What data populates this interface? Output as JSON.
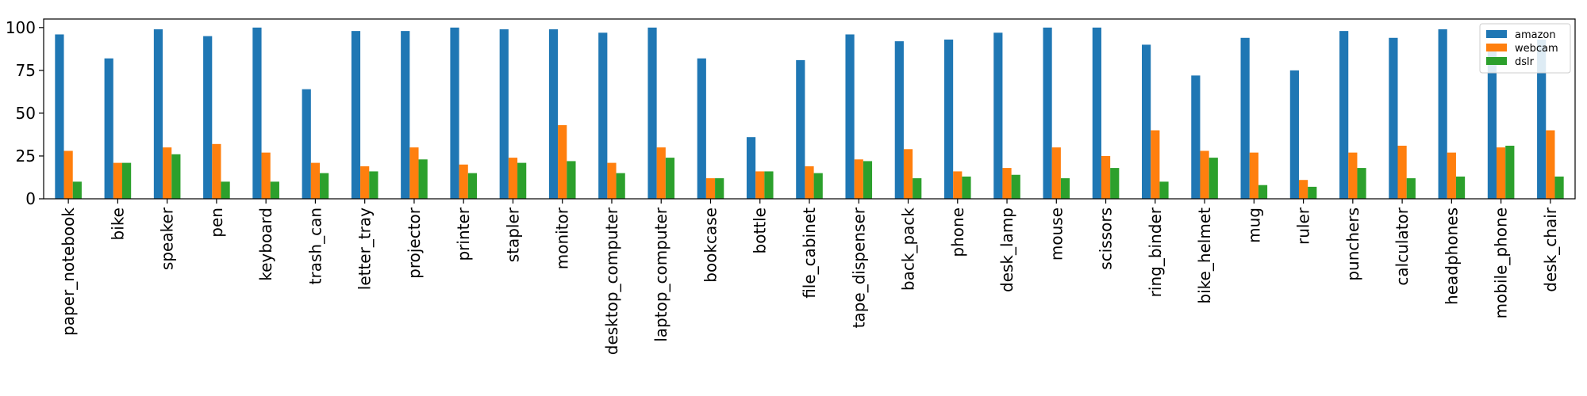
{
  "chart_data": {
    "type": "bar",
    "title": "",
    "xlabel": "",
    "ylabel": "",
    "ylim": [
      0,
      105
    ],
    "yticks": [
      0,
      25,
      50,
      75,
      100
    ],
    "grid": false,
    "legend_placement": "top-right",
    "categories": [
      "paper_notebook",
      "bike",
      "speaker",
      "pen",
      "keyboard",
      "trash_can",
      "letter_tray",
      "projector",
      "printer",
      "stapler",
      "monitor",
      "desktop_computer",
      "laptop_computer",
      "bookcase",
      "bottle",
      "file_cabinet",
      "tape_dispenser",
      "back_pack",
      "phone",
      "desk_lamp",
      "mouse",
      "scissors",
      "ring_binder",
      "bike_helmet",
      "mug",
      "ruler",
      "punchers",
      "calculator",
      "headphones",
      "mobile_phone",
      "desk_chair"
    ],
    "series": [
      {
        "name": "amazon",
        "color": "#1f77b4",
        "values": [
          96,
          82,
          99,
          95,
          100,
          64,
          98,
          98,
          100,
          99,
          99,
          97,
          100,
          82,
          36,
          81,
          96,
          92,
          93,
          97,
          100,
          100,
          90,
          72,
          94,
          75,
          98,
          94,
          99,
          90,
          93
        ]
      },
      {
        "name": "webcam",
        "color": "#ff7f0e",
        "values": [
          28,
          21,
          30,
          32,
          27,
          21,
          19,
          30,
          20,
          24,
          43,
          21,
          30,
          12,
          16,
          19,
          23,
          29,
          16,
          18,
          30,
          25,
          40,
          28,
          27,
          11,
          27,
          31,
          27,
          30,
          40
        ]
      },
      {
        "name": "dslr",
        "color": "#2ca02c",
        "values": [
          10,
          21,
          26,
          10,
          10,
          15,
          16,
          23,
          15,
          21,
          22,
          15,
          24,
          12,
          16,
          15,
          22,
          12,
          13,
          14,
          12,
          18,
          10,
          24,
          8,
          7,
          18,
          12,
          13,
          31,
          13
        ]
      }
    ]
  }
}
